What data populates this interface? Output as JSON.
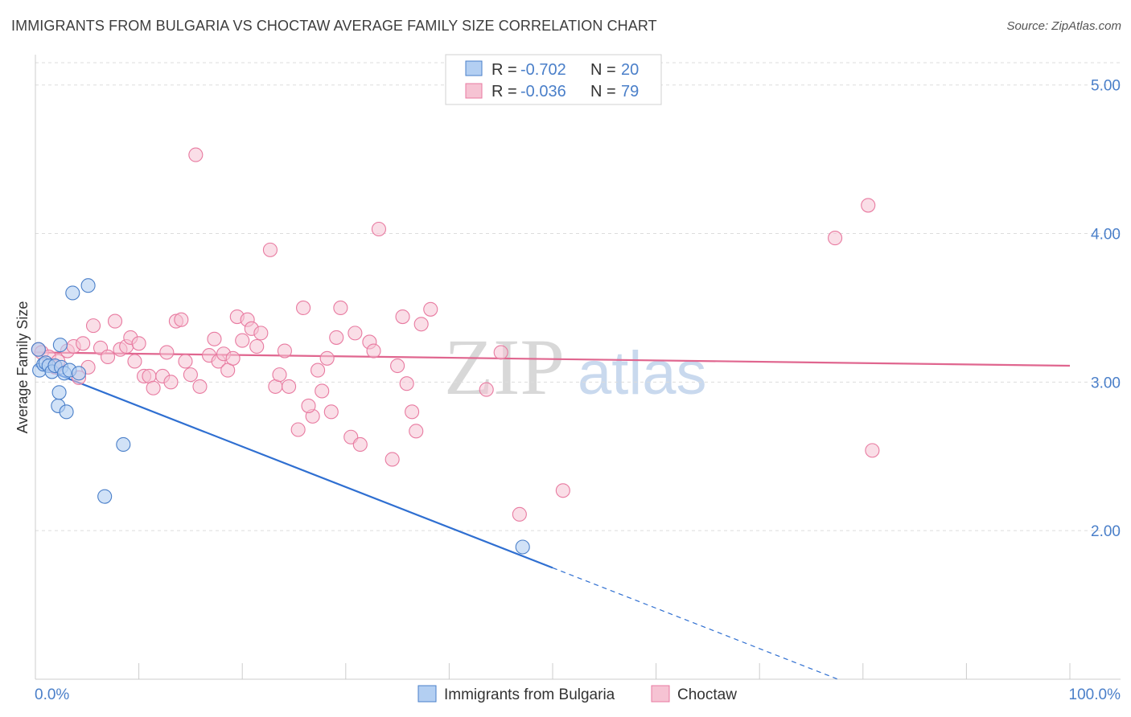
{
  "title": "IMMIGRANTS FROM BULGARIA VS CHOCTAW AVERAGE FAMILY SIZE CORRELATION CHART",
  "source": "Source: ZipAtlas.com",
  "watermark": {
    "zip": "ZIP",
    "atlas": "atlas"
  },
  "colors": {
    "blue": "#4a7fc9",
    "blue_fill": "#b3cff2",
    "blue_line": "#2f6fd1",
    "pink": "#e87aa0",
    "pink_fill": "#f6c3d3",
    "pink_line": "#e0668f",
    "grid": "#dddddd"
  },
  "chart_data": {
    "type": "scatter",
    "title": "IMMIGRANTS FROM BULGARIA VS CHOCTAW AVERAGE FAMILY SIZE CORRELATION CHART",
    "xlabel": "",
    "ylabel": "Average Family Size",
    "xlim": [
      0,
      100
    ],
    "ylim": [
      1.0,
      5.15
    ],
    "x_tick_labels": {
      "left": "0.0%",
      "right": "100.0%"
    },
    "y_ticks": [
      {
        "value": 2.0,
        "label": "2.00"
      },
      {
        "value": 3.0,
        "label": "3.00"
      },
      {
        "value": 4.0,
        "label": "4.00"
      },
      {
        "value": 5.0,
        "label": "5.00"
      }
    ],
    "legend": {
      "entries": [
        {
          "r_label": "R =",
          "r_value": "-0.702",
          "n_label": "N =",
          "n_value": "20"
        },
        {
          "r_label": "R =",
          "r_value": "-0.036",
          "n_label": "N =",
          "n_value": "79"
        }
      ]
    },
    "series": [
      {
        "name": "Immigrants from Bulgaria",
        "color": "blue",
        "r": -0.702,
        "n": 20,
        "trend": {
          "x0": 0,
          "y0": 3.11,
          "x1": 50,
          "y1": 1.75,
          "dash_x_end": 77.5
        },
        "points": [
          [
            0.3,
            3.22
          ],
          [
            0.4,
            3.08
          ],
          [
            0.8,
            3.12
          ],
          [
            1.0,
            3.13
          ],
          [
            1.3,
            3.11
          ],
          [
            1.6,
            3.07
          ],
          [
            1.9,
            3.11
          ],
          [
            2.2,
            2.84
          ],
          [
            2.3,
            2.93
          ],
          [
            2.5,
            3.1
          ],
          [
            2.4,
            3.25
          ],
          [
            2.8,
            3.06
          ],
          [
            3.0,
            2.8
          ],
          [
            3.3,
            3.08
          ],
          [
            4.2,
            3.06
          ],
          [
            3.6,
            3.6
          ],
          [
            5.1,
            3.65
          ],
          [
            8.5,
            2.58
          ],
          [
            6.7,
            2.23
          ],
          [
            47.1,
            1.89
          ]
        ]
      },
      {
        "name": "Choctaw",
        "color": "pink",
        "r": -0.036,
        "n": 79,
        "trend": {
          "x0": 0,
          "y0": 3.2,
          "x1": 100,
          "y1": 3.11
        },
        "points": [
          [
            0.3,
            3.22
          ],
          [
            0.6,
            3.2
          ],
          [
            1.3,
            3.17
          ],
          [
            1.9,
            3.1
          ],
          [
            2.2,
            3.14
          ],
          [
            3.1,
            3.21
          ],
          [
            3.7,
            3.24
          ],
          [
            4.2,
            3.03
          ],
          [
            4.6,
            3.26
          ],
          [
            5.1,
            3.1
          ],
          [
            5.6,
            3.38
          ],
          [
            6.3,
            3.23
          ],
          [
            7.0,
            3.17
          ],
          [
            7.7,
            3.41
          ],
          [
            8.2,
            3.22
          ],
          [
            8.8,
            3.24
          ],
          [
            9.2,
            3.3
          ],
          [
            9.6,
            3.14
          ],
          [
            10.0,
            3.26
          ],
          [
            10.5,
            3.04
          ],
          [
            11.0,
            3.04
          ],
          [
            11.4,
            2.96
          ],
          [
            12.3,
            3.04
          ],
          [
            12.7,
            3.2
          ],
          [
            13.1,
            3.0
          ],
          [
            13.6,
            3.41
          ],
          [
            14.1,
            3.42
          ],
          [
            14.5,
            3.14
          ],
          [
            15.0,
            3.05
          ],
          [
            15.9,
            2.97
          ],
          [
            16.8,
            3.18
          ],
          [
            17.3,
            3.29
          ],
          [
            17.7,
            3.14
          ],
          [
            18.2,
            3.19
          ],
          [
            18.6,
            3.08
          ],
          [
            19.1,
            3.16
          ],
          [
            19.5,
            3.44
          ],
          [
            20.0,
            3.28
          ],
          [
            20.5,
            3.42
          ],
          [
            20.9,
            3.36
          ],
          [
            21.4,
            3.24
          ],
          [
            21.8,
            3.33
          ],
          [
            22.7,
            3.89
          ],
          [
            23.2,
            2.97
          ],
          [
            23.6,
            3.05
          ],
          [
            24.1,
            3.21
          ],
          [
            24.5,
            2.97
          ],
          [
            25.4,
            2.68
          ],
          [
            25.9,
            3.5
          ],
          [
            26.8,
            2.77
          ],
          [
            27.3,
            3.08
          ],
          [
            27.7,
            2.94
          ],
          [
            28.2,
            3.16
          ],
          [
            28.6,
            2.8
          ],
          [
            29.5,
            3.5
          ],
          [
            29.1,
            3.3
          ],
          [
            30.5,
            2.63
          ],
          [
            30.9,
            3.33
          ],
          [
            31.4,
            2.58
          ],
          [
            32.3,
            3.27
          ],
          [
            32.7,
            3.21
          ],
          [
            33.2,
            4.03
          ],
          [
            34.5,
            2.48
          ],
          [
            35.0,
            3.11
          ],
          [
            35.5,
            3.44
          ],
          [
            36.4,
            2.8
          ],
          [
            36.8,
            2.67
          ],
          [
            37.3,
            3.39
          ],
          [
            38.2,
            3.49
          ],
          [
            15.5,
            4.53
          ],
          [
            43.6,
            2.95
          ],
          [
            45.0,
            3.2
          ],
          [
            46.8,
            2.11
          ],
          [
            51.0,
            2.27
          ],
          [
            77.3,
            3.97
          ],
          [
            80.5,
            4.19
          ],
          [
            80.9,
            2.54
          ],
          [
            35.9,
            2.99
          ],
          [
            26.4,
            2.84
          ]
        ]
      }
    ]
  },
  "bottom_legend": [
    {
      "label": "Immigrants from Bulgaria",
      "color": "blue"
    },
    {
      "label": "Choctaw",
      "color": "pink"
    }
  ]
}
